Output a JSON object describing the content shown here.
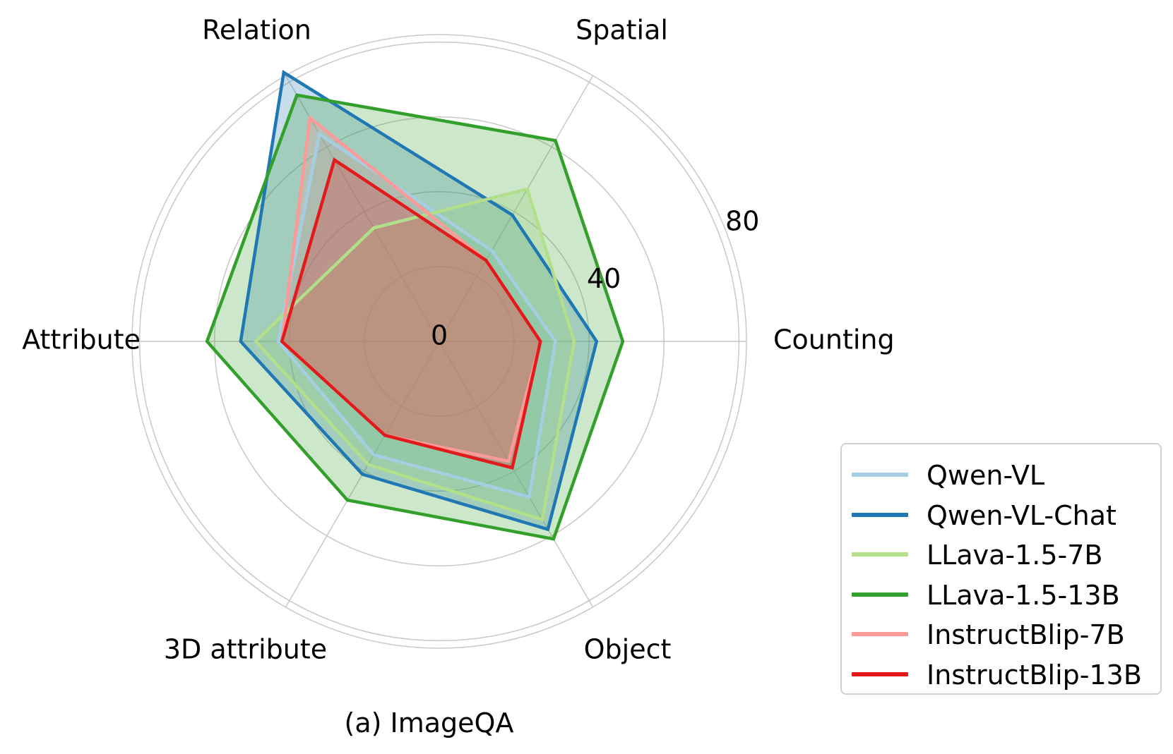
{
  "chart_data": {
    "type": "radar",
    "caption": "(a) ImageQA",
    "axes": [
      "Counting",
      "Spatial",
      "Relation",
      "Attribute",
      "3D attribute",
      "Object"
    ],
    "rmax": 82,
    "radial_ticks": [
      0,
      40,
      80
    ],
    "grid": true,
    "legend_position": "bottom-right",
    "series": [
      {
        "name": "Qwen-VL",
        "color": "#a6cee3",
        "values": [
          31,
          28,
          64,
          43,
          35,
          48
        ]
      },
      {
        "name": "Qwen-VL-Chat",
        "color": "#1f78b4",
        "values": [
          42,
          39,
          83,
          53,
          41,
          58
        ]
      },
      {
        "name": "LLava-1.5-7B",
        "color": "#b2df8a",
        "values": [
          36,
          47,
          35,
          49,
          38,
          55
        ]
      },
      {
        "name": "LLava-1.5-13B",
        "color": "#33a02c",
        "values": [
          49,
          62,
          76,
          62,
          49,
          61
        ]
      },
      {
        "name": "InstructBlip-7B",
        "color": "#fb9a99",
        "values": [
          27,
          25,
          69,
          42,
          29,
          37
        ]
      },
      {
        "name": "InstructBlip-13B",
        "color": "#e31a1c",
        "values": [
          27,
          25,
          56,
          42,
          29,
          39
        ]
      }
    ]
  }
}
